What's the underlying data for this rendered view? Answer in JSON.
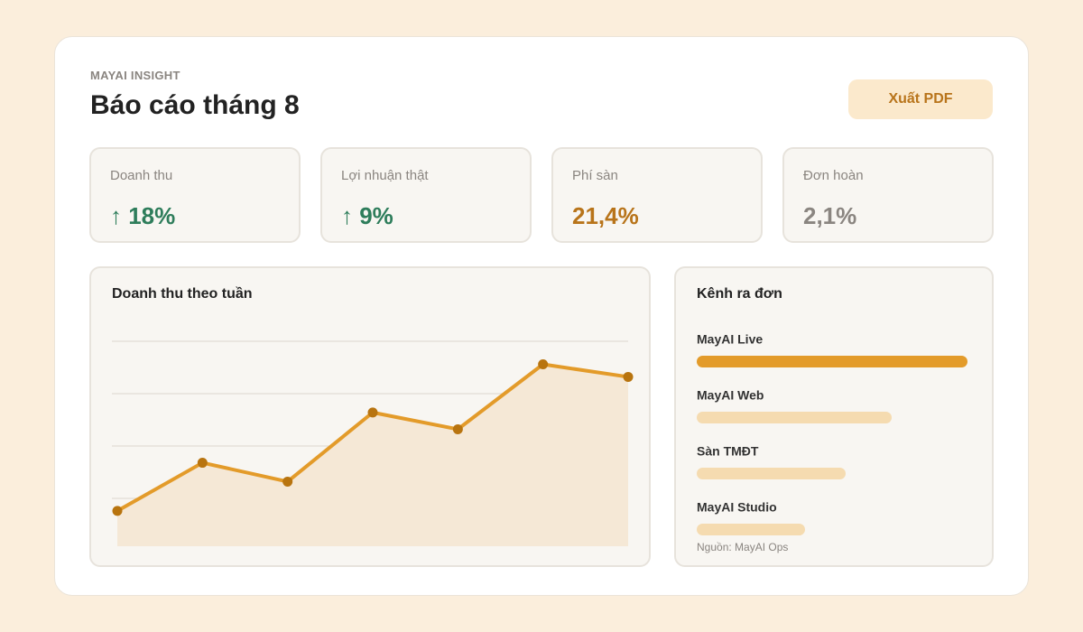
{
  "header": {
    "eyebrow": "MAYAI INSIGHT",
    "title": "Báo cáo tháng 8",
    "button": "Xuất PDF"
  },
  "kpis": [
    {
      "label": "Doanh thu",
      "value": "↑ 18%",
      "color": "#2e7d5b"
    },
    {
      "label": "Lợi nhuận thật",
      "value": "↑ 9%",
      "color": "#2e7d5b"
    },
    {
      "label": "Phí sàn",
      "value": "21,4%",
      "color": "#b8741a"
    },
    {
      "label": "Đơn hoàn",
      "value": "2,1%",
      "color": "#8a8580"
    }
  ],
  "chart_data": [
    {
      "type": "line",
      "title": "Doanh thu theo tuần",
      "categories": [
        null,
        null,
        null,
        null,
        null,
        null,
        null
      ],
      "values": [
        19,
        42,
        33,
        66,
        58,
        89,
        83
      ],
      "color": "#e39b2a",
      "marker_color": "#b8740f",
      "area_color": "#f5e8d6",
      "ylim": [
        0,
        100
      ],
      "yticks": [
        25,
        50,
        75,
        100
      ],
      "grid": true
    },
    {
      "type": "hbar",
      "title": "Kênh ra đơn",
      "categories": [
        "MayAI Live",
        "MayAI Web",
        "Sàn TMĐT",
        "MayAI Studio"
      ],
      "values": [
        100,
        72,
        55,
        40
      ],
      "colors": [
        "#e39b2a",
        "#f5dbb0",
        "#f5dbb0",
        "#f5dbb0"
      ],
      "xlim": [
        0,
        100
      ],
      "note": "Nguồn: MayAI Ops"
    }
  ]
}
